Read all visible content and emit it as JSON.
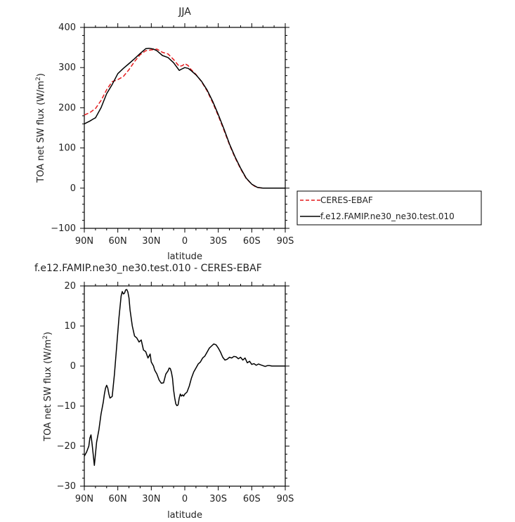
{
  "chart_data": [
    {
      "type": "line",
      "title": "JJA",
      "xlabel": "latitude",
      "ylabel": "TOA net SW flux (W/m",
      "ylabel_sup": "2",
      "ylabel_close": ")",
      "xlim": [
        90,
        -90
      ],
      "ylim": [
        -100,
        400
      ],
      "xticks": [
        90,
        60,
        30,
        0,
        -30,
        -60,
        -90
      ],
      "xtick_labels": [
        "90N",
        "60N",
        "30N",
        "0",
        "30S",
        "60S",
        "90S"
      ],
      "yticks": [
        -100,
        0,
        100,
        200,
        300,
        400
      ],
      "ytick_labels": [
        "−100",
        "0",
        "100",
        "200",
        "300",
        "400"
      ],
      "grid": false,
      "legend": "right",
      "series": [
        {
          "name": "CERES-EBAF",
          "color": "#e41a1c",
          "dash": "dashed",
          "x": [
            90,
            85,
            80,
            75,
            70,
            65,
            60,
            55,
            50,
            45,
            40,
            35,
            30,
            25,
            20,
            15,
            10,
            5,
            2,
            0,
            -3,
            -5,
            -10,
            -15,
            -20,
            -25,
            -30,
            -35,
            -40,
            -45,
            -50,
            -55,
            -60,
            -63,
            -65,
            -70,
            -75,
            -80,
            -85,
            -90
          ],
          "y": [
            182,
            188,
            198,
            218,
            245,
            265,
            270,
            278,
            295,
            315,
            332,
            342,
            344,
            346,
            338,
            334,
            320,
            303,
            305,
            310,
            305,
            297,
            283,
            265,
            242,
            213,
            180,
            145,
            108,
            76,
            48,
            24,
            10,
            4,
            2,
            0,
            0,
            0,
            0,
            0
          ]
        },
        {
          "name": "f.e12.FAMIP.ne30_ne30.test.010",
          "color": "#000000",
          "dash": "solid",
          "x": [
            90,
            85,
            82,
            80,
            75,
            70,
            65,
            60,
            55,
            50,
            45,
            40,
            35,
            32,
            28,
            25,
            20,
            15,
            10,
            5,
            3,
            0,
            -3,
            -5,
            -10,
            -15,
            -20,
            -25,
            -30,
            -35,
            -40,
            -45,
            -50,
            -55,
            -60,
            -63,
            -65,
            -70,
            -75,
            -80,
            -85,
            -90
          ],
          "y": [
            160,
            167,
            172,
            175,
            200,
            235,
            258,
            285,
            298,
            310,
            322,
            335,
            347,
            348,
            346,
            342,
            330,
            325,
            312,
            293,
            296,
            300,
            298,
            294,
            282,
            266,
            244,
            216,
            183,
            148,
            110,
            78,
            50,
            25,
            10,
            5,
            2,
            0,
            0,
            0,
            0,
            0
          ]
        }
      ]
    },
    {
      "type": "line",
      "title": "f.e12.FAMIP.ne30_ne30.test.010 - CERES-EBAF",
      "xlabel": "latitude",
      "ylabel": "TOA net SW flux (W/m",
      "ylabel_sup": "2",
      "ylabel_close": ")",
      "xlim": [
        90,
        -90
      ],
      "ylim": [
        -30,
        20
      ],
      "xticks": [
        90,
        60,
        30,
        0,
        -30,
        -60,
        -90
      ],
      "xtick_labels": [
        "90N",
        "60N",
        "30N",
        "0",
        "30S",
        "60S",
        "90S"
      ],
      "yticks": [
        -30,
        -20,
        -10,
        0,
        10,
        20
      ],
      "ytick_labels": [
        "−30",
        "−20",
        "−10",
        "0",
        "10",
        "20"
      ],
      "grid": false,
      "legend": "none",
      "series": [
        {
          "color": "#000000",
          "dash": "solid",
          "x": [
            90,
            88,
            86,
            85,
            84,
            83,
            81,
            79,
            77,
            75,
            73,
            72,
            71,
            70,
            69,
            68,
            67,
            66,
            65,
            63,
            61,
            59,
            57,
            56,
            55,
            54,
            53,
            52,
            51,
            50,
            49,
            47,
            45,
            43,
            42,
            41,
            39,
            37,
            35,
            33,
            31,
            30,
            29,
            28,
            27,
            25,
            23,
            21,
            19,
            17,
            15,
            14,
            13,
            12,
            11,
            10,
            9,
            8,
            7,
            6,
            5,
            4,
            3,
            2,
            1,
            0,
            -2,
            -4,
            -6,
            -8,
            -10,
            -12,
            -14,
            -16,
            -18,
            -20,
            -22,
            -24,
            -26,
            -28,
            -30,
            -32,
            -34,
            -36,
            -38,
            -40,
            -42,
            -44,
            -46,
            -48,
            -50,
            -52,
            -54,
            -56,
            -58,
            -60,
            -62,
            -64,
            -66,
            -68,
            -70,
            -72,
            -74,
            -76,
            -78,
            -80,
            -82,
            -84,
            -86,
            -88,
            -90
          ],
          "y": [
            -22.5,
            -21.5,
            -20,
            -18,
            -17.2,
            -19.5,
            -24.8,
            -19,
            -16,
            -12,
            -9,
            -7,
            -5.5,
            -4.8,
            -5.5,
            -7,
            -8,
            -7.8,
            -7.6,
            -2,
            5,
            12,
            17.5,
            18.6,
            18,
            18.2,
            19,
            19.1,
            18.5,
            17,
            14,
            10,
            7.5,
            7,
            6.5,
            6,
            6.5,
            4,
            3.6,
            2,
            3,
            1,
            0.5,
            0,
            -1,
            -2,
            -3.5,
            -4.3,
            -4.2,
            -2,
            -1.2,
            -0.5,
            -0.6,
            -1.5,
            -3,
            -6,
            -8,
            -9.5,
            -9.9,
            -9.7,
            -8,
            -7,
            -7.5,
            -7.2,
            -7.5,
            -7,
            -6.5,
            -5,
            -3,
            -1.5,
            -0.5,
            0.5,
            1,
            2,
            2.5,
            3.5,
            4.5,
            5,
            5.5,
            5.3,
            4.5,
            3.5,
            2.2,
            1.5,
            1.7,
            2.2,
            2,
            2.4,
            2.3,
            1.8,
            2.2,
            1.5,
            2.0,
            0.8,
            1.2,
            0.4,
            0.6,
            0.2,
            0.5,
            0.3,
            0.1,
            -0.1,
            0.1,
            0.1,
            0,
            0,
            0,
            0,
            0,
            0,
            0
          ]
        }
      ]
    }
  ]
}
